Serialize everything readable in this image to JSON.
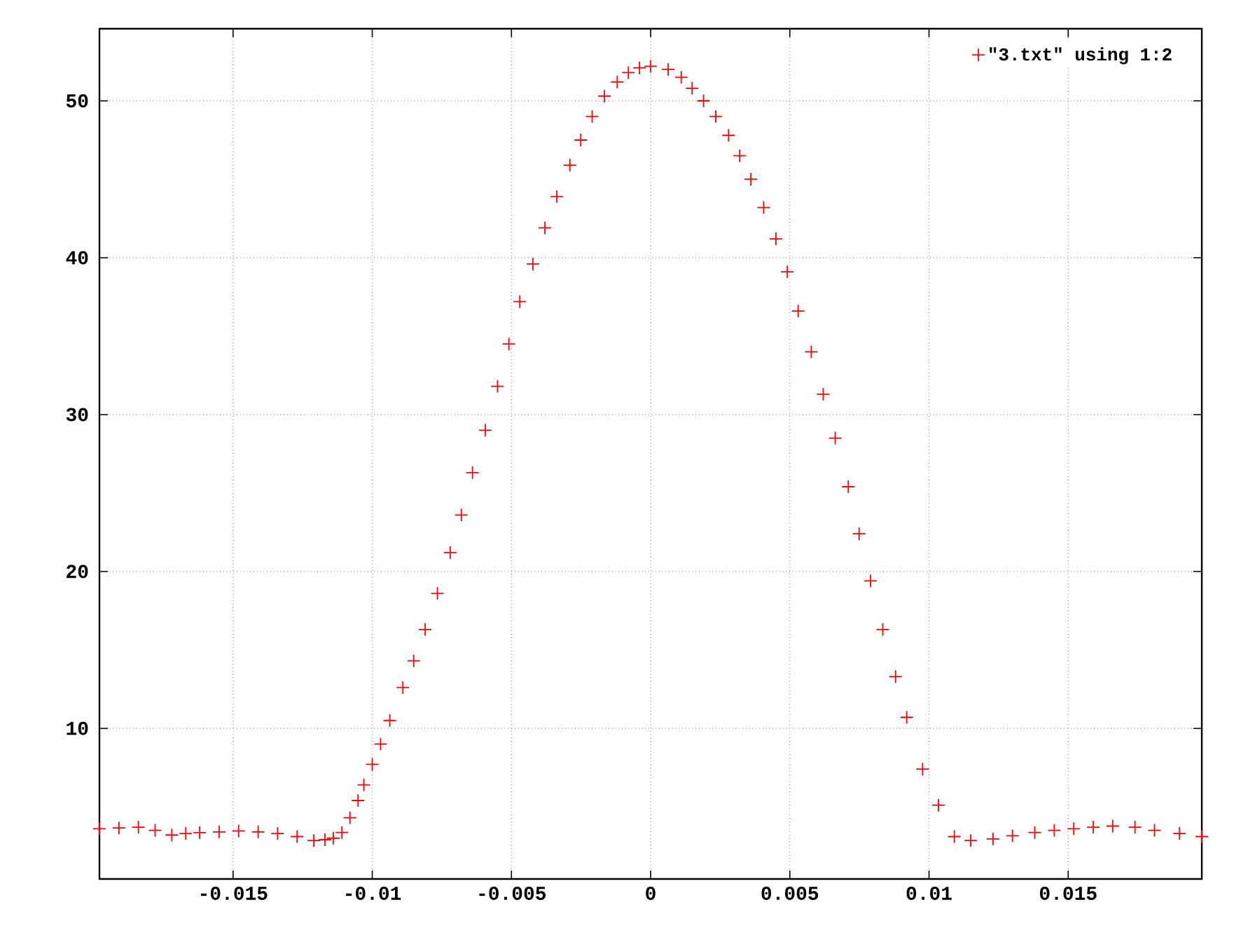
{
  "chart_data": {
    "type": "scatter",
    "marker": "cross",
    "grid": true,
    "legend": "top right",
    "xlim": [
      -0.0198,
      0.0198
    ],
    "ylim": [
      0.4,
      54.6
    ],
    "xticks": [
      {
        "value": -0.015,
        "label": "-0.015"
      },
      {
        "value": -0.01,
        "label": "-0.01"
      },
      {
        "value": -0.005,
        "label": "-0.005"
      },
      0,
      {
        "value": 0.005,
        "label": "0.005"
      },
      {
        "value": 0.01,
        "label": "0.01"
      },
      {
        "value": 0.015,
        "label": "0.015"
      }
    ],
    "yticks": [
      10,
      20,
      30,
      40,
      50
    ],
    "series": [
      {
        "name": "\"3.txt\" using 1:2",
        "color": "#ff0000",
        "x": [
          -0.0198,
          -0.0191,
          -0.0184,
          -0.0178,
          -0.0172,
          -0.0167,
          -0.0162,
          -0.0155,
          -0.0148,
          -0.0141,
          -0.0134,
          -0.0127,
          -0.0121,
          -0.0117,
          -0.0114,
          -0.01109,
          -0.0108,
          -0.01051,
          -0.0103,
          -0.01,
          -0.0097,
          -0.00937,
          -0.0089,
          -0.00851,
          -0.0081,
          -0.00766,
          -0.0072,
          -0.0068,
          -0.0064,
          -0.00594,
          -0.0055,
          -0.00509,
          -0.0047,
          -0.00423,
          -0.0038,
          -0.00337,
          -0.0029,
          -0.00251,
          -0.0021,
          -0.00166,
          -0.0012,
          -0.0008,
          -0.0004,
          0,
          0.00063,
          0.0011,
          0.00149,
          0.0019,
          0.00234,
          0.0028,
          0.0032,
          0.0036,
          0.00406,
          0.0045,
          0.00491,
          0.0053,
          0.00577,
          0.0062,
          0.00663,
          0.0071,
          0.00749,
          0.0079,
          0.00834,
          0.0088,
          0.0092,
          0.00977,
          0.01034,
          0.01091,
          0.0115,
          0.0123,
          0.013,
          0.0138,
          0.0145,
          0.0152,
          0.0159,
          0.0166,
          0.0174,
          0.0181,
          0.019,
          0.0198
        ],
        "values": [
          3.6,
          3.65,
          3.7,
          3.5,
          3.2,
          3.3,
          3.35,
          3.4,
          3.46,
          3.4,
          3.3,
          3.1,
          2.85,
          2.9,
          3.0,
          3.36,
          4.3,
          5.4,
          6.4,
          7.7,
          9.0,
          10.5,
          12.6,
          14.3,
          16.3,
          18.6,
          21.2,
          23.6,
          26.3,
          29.0,
          31.8,
          34.5,
          37.2,
          39.6,
          41.9,
          43.9,
          45.9,
          47.5,
          49.0,
          50.3,
          51.2,
          51.8,
          52.1,
          52.2,
          52.0,
          51.5,
          50.8,
          50.0,
          49.0,
          47.8,
          46.5,
          45.0,
          43.2,
          41.2,
          39.1,
          36.6,
          34.0,
          31.3,
          28.5,
          25.4,
          22.4,
          19.4,
          16.3,
          13.3,
          10.7,
          7.4,
          5.1,
          3.1,
          2.85,
          2.95,
          3.15,
          3.36,
          3.5,
          3.6,
          3.7,
          3.77,
          3.7,
          3.5,
          3.3,
          3.1
        ]
      }
    ]
  }
}
